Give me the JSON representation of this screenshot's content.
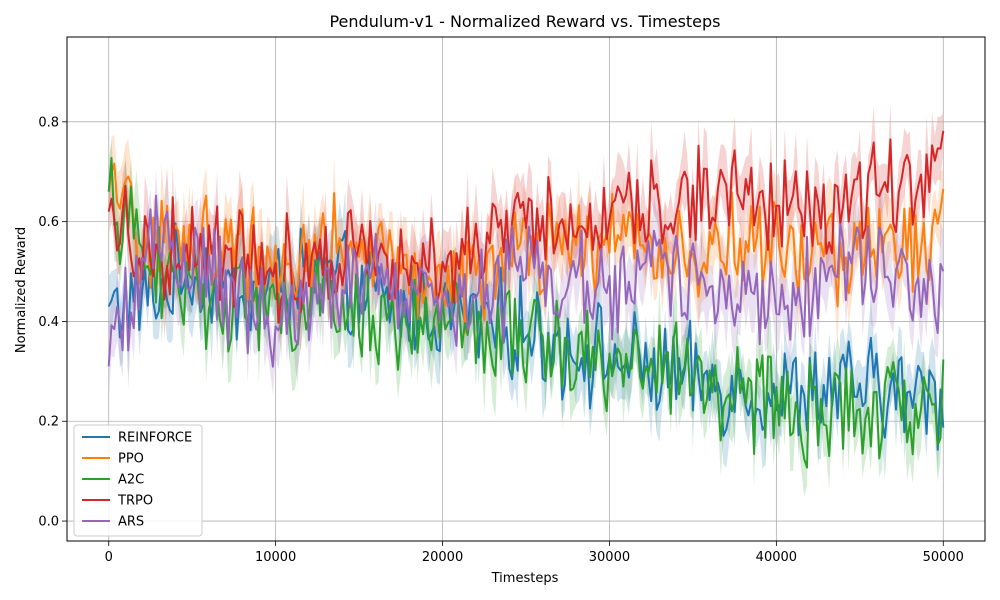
{
  "chart_data": {
    "type": "line",
    "title": "Pendulum-v1 - Normalized Reward vs. Timesteps",
    "xlabel": "Timesteps",
    "ylabel": "Normalized Reward",
    "xlim": [
      -2500,
      52500
    ],
    "ylim": [
      -0.04,
      0.97
    ],
    "xticks": [
      0,
      10000,
      20000,
      30000,
      40000,
      50000
    ],
    "yticks": [
      0.0,
      0.2,
      0.4,
      0.6,
      0.8
    ],
    "grid": true,
    "legend_position": "lower-left",
    "band_half_width": 0.06,
    "series": [
      {
        "name": "REINFORCE",
        "color": "#1f77b4",
        "x": [
          0,
          2500,
          5000,
          7500,
          10000,
          12500,
          15000,
          17500,
          20000,
          22500,
          25000,
          27500,
          30000,
          32500,
          35000,
          37500,
          40000,
          42500,
          45000,
          47500,
          50000
        ],
        "y": [
          0.43,
          0.45,
          0.5,
          0.45,
          0.47,
          0.5,
          0.45,
          0.43,
          0.42,
          0.4,
          0.38,
          0.35,
          0.33,
          0.3,
          0.28,
          0.27,
          0.25,
          0.26,
          0.27,
          0.25,
          0.25
        ]
      },
      {
        "name": "PPO",
        "color": "#ff7f0e",
        "x": [
          0,
          2500,
          5000,
          7500,
          10000,
          12500,
          15000,
          17500,
          20000,
          22500,
          25000,
          27500,
          30000,
          32500,
          35000,
          37500,
          40000,
          42500,
          45000,
          47500,
          50000
        ],
        "y": [
          0.66,
          0.55,
          0.56,
          0.55,
          0.52,
          0.55,
          0.54,
          0.5,
          0.48,
          0.5,
          0.53,
          0.55,
          0.57,
          0.55,
          0.54,
          0.55,
          0.54,
          0.53,
          0.55,
          0.55,
          0.58
        ]
      },
      {
        "name": "A2C",
        "color": "#2ca02c",
        "x": [
          0,
          2500,
          5000,
          7500,
          10000,
          12500,
          15000,
          17500,
          20000,
          22500,
          25000,
          27500,
          30000,
          32500,
          35000,
          37500,
          40000,
          42500,
          45000,
          47500,
          50000
        ],
        "y": [
          0.66,
          0.5,
          0.46,
          0.45,
          0.42,
          0.43,
          0.42,
          0.4,
          0.38,
          0.37,
          0.37,
          0.34,
          0.32,
          0.31,
          0.29,
          0.26,
          0.23,
          0.21,
          0.21,
          0.22,
          0.25
        ]
      },
      {
        "name": "TRPO",
        "color": "#d62728",
        "x": [
          0,
          2500,
          5000,
          7500,
          10000,
          12500,
          15000,
          17500,
          20000,
          22500,
          25000,
          27500,
          30000,
          32500,
          35000,
          37500,
          40000,
          42500,
          45000,
          47500,
          50000
        ],
        "y": [
          0.62,
          0.53,
          0.56,
          0.53,
          0.5,
          0.53,
          0.56,
          0.55,
          0.52,
          0.55,
          0.6,
          0.58,
          0.62,
          0.63,
          0.65,
          0.66,
          0.64,
          0.62,
          0.66,
          0.67,
          0.72
        ]
      },
      {
        "name": "ARS",
        "color": "#9467bd",
        "x": [
          0,
          2500,
          5000,
          7500,
          10000,
          12500,
          15000,
          17500,
          20000,
          22500,
          25000,
          27500,
          30000,
          32500,
          35000,
          37500,
          40000,
          42500,
          45000,
          47500,
          50000
        ],
        "y": [
          0.31,
          0.56,
          0.52,
          0.45,
          0.38,
          0.47,
          0.5,
          0.45,
          0.43,
          0.45,
          0.5,
          0.48,
          0.46,
          0.5,
          0.48,
          0.45,
          0.47,
          0.47,
          0.55,
          0.5,
          0.45
        ]
      }
    ]
  }
}
